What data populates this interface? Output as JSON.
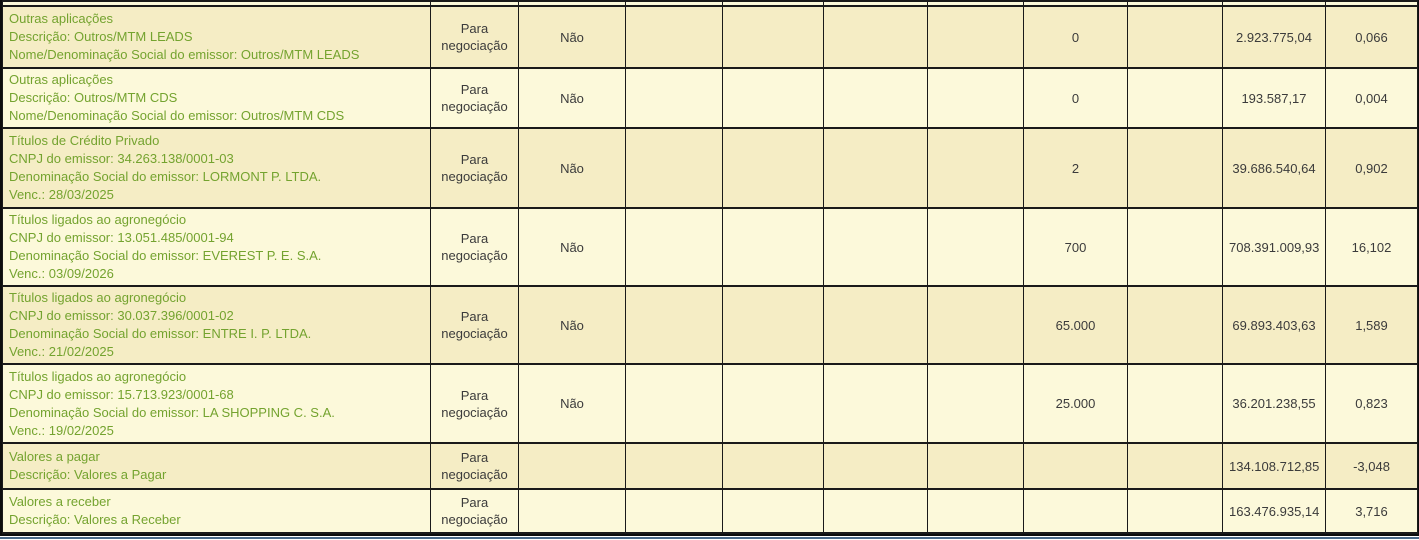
{
  "colors": {
    "row_dark_bg": "#f5edc5",
    "row_light_bg": "#fcf9da",
    "description_text_green": "#74a32f",
    "cell_text_gray": "#3b3b3b",
    "grid_border": "#1a1a1a",
    "bottom_accent_blue": "#4a6a8a"
  },
  "table": {
    "rows": [
      {
        "description_lines": [
          "Outras aplicações",
          "Descrição: Outros/MTM LEADS",
          "Nome/Denominação Social do emissor: Outros/MTM LEADS"
        ],
        "classification": "Para negociação",
        "negotiated_flag": "Não",
        "quantity": "0",
        "market_value": "2.923.775,04",
        "percent_net_assets": "0,066"
      },
      {
        "description_lines": [
          "Outras aplicações",
          "Descrição: Outros/MTM CDS",
          "Nome/Denominação Social do emissor: Outros/MTM CDS"
        ],
        "classification": "Para negociação",
        "negotiated_flag": "Não",
        "quantity": "0",
        "market_value": "193.587,17",
        "percent_net_assets": "0,004"
      },
      {
        "description_lines": [
          "Títulos de Crédito Privado",
          "CNPJ do emissor: 34.263.138/0001-03",
          "Denominação Social do emissor: LORMONT P. LTDA.",
          "Venc.: 28/03/2025"
        ],
        "classification": "Para negociação",
        "negotiated_flag": "Não",
        "quantity": "2",
        "market_value": "39.686.540,64",
        "percent_net_assets": "0,902"
      },
      {
        "description_lines": [
          "Títulos ligados ao agronegócio",
          "CNPJ do emissor: 13.051.485/0001-94",
          "Denominação Social do emissor: EVEREST P. E. S.A.",
          "Venc.: 03/09/2026"
        ],
        "classification": "Para negociação",
        "negotiated_flag": "Não",
        "quantity": "700",
        "market_value": "708.391.009,93",
        "percent_net_assets": "16,102"
      },
      {
        "description_lines": [
          "Títulos ligados ao agronegócio",
          "CNPJ do emissor: 30.037.396/0001-02",
          "Denominação Social do emissor: ENTRE I. P. LTDA.",
          "Venc.: 21/02/2025"
        ],
        "classification": "Para negociação",
        "negotiated_flag": "Não",
        "quantity": "65.000",
        "market_value": "69.893.403,63",
        "percent_net_assets": "1,589"
      },
      {
        "description_lines": [
          "Títulos ligados ao agronegócio",
          "CNPJ do emissor: 15.713.923/0001-68",
          "Denominação Social do emissor: LA SHOPPING C. S.A.",
          "Venc.: 19/02/2025"
        ],
        "classification": "Para negociação",
        "negotiated_flag": "Não",
        "quantity": "25.000",
        "market_value": "36.201.238,55",
        "percent_net_assets": "0,823"
      },
      {
        "description_lines": [
          "Valores a pagar",
          "Descrição: Valores a Pagar"
        ],
        "classification": "Para negociação",
        "negotiated_flag": "",
        "quantity": "",
        "market_value": "134.108.712,85",
        "percent_net_assets": "-3,048"
      },
      {
        "description_lines": [
          "Valores a receber",
          "Descrição: Valores a Receber"
        ],
        "classification": "Para negociação",
        "negotiated_flag": "",
        "quantity": "",
        "market_value": "163.476.935,14",
        "percent_net_assets": "3,716"
      }
    ]
  }
}
